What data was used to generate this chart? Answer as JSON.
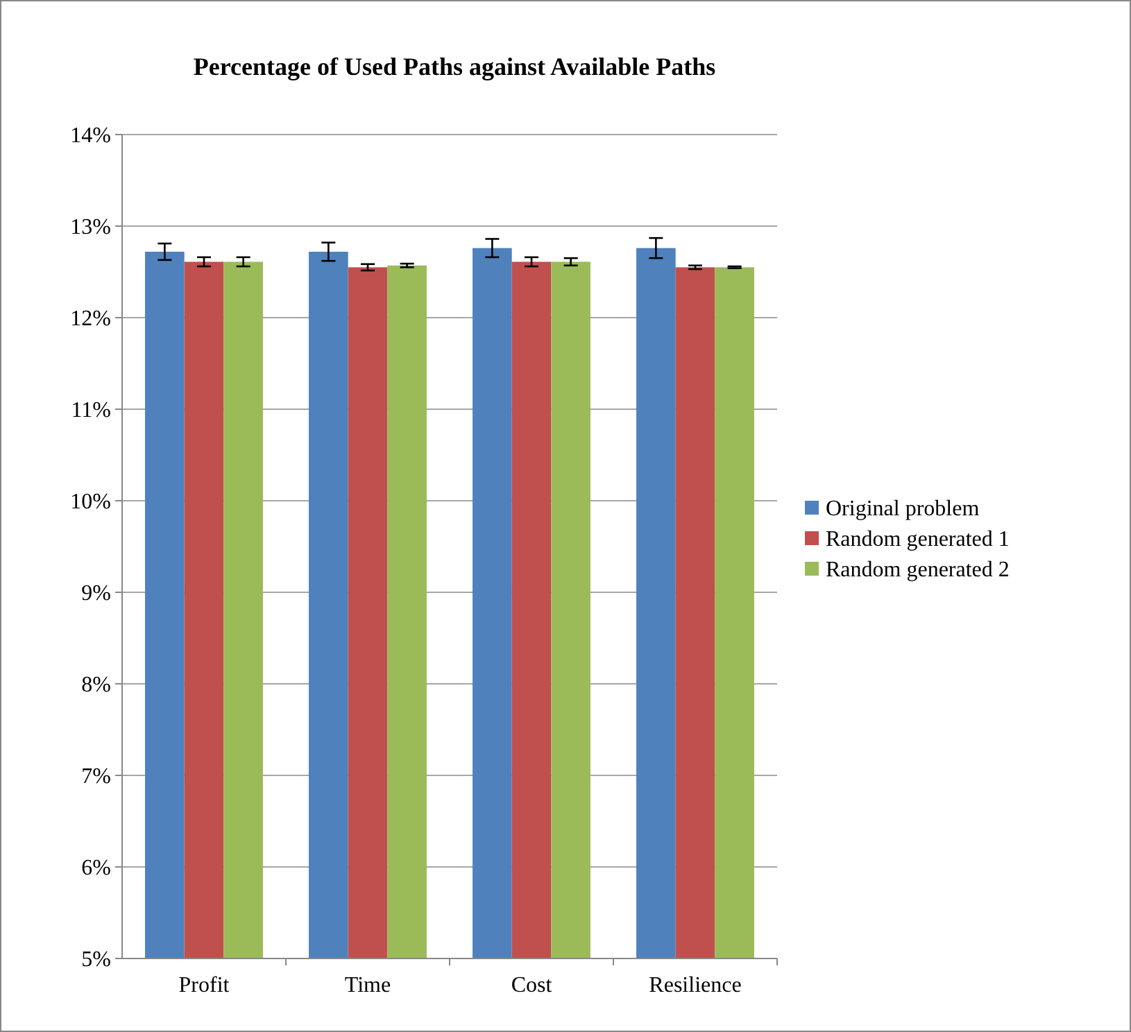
{
  "chart_data": {
    "type": "bar",
    "title": "Percentage of Used Paths against Available Paths",
    "categories": [
      "Profit",
      "Time",
      "Cost",
      "Resilience"
    ],
    "series": [
      {
        "name": "Original problem",
        "color": "#4f81bd",
        "values": [
          12.72,
          12.72,
          12.76,
          12.76
        ],
        "errors": [
          0.09,
          0.1,
          0.1,
          0.11
        ]
      },
      {
        "name": "Random generated 1",
        "color": "#c0504d",
        "values": [
          12.61,
          12.55,
          12.61,
          12.55
        ],
        "errors": [
          0.05,
          0.035,
          0.05,
          0.02
        ]
      },
      {
        "name": "Random generated 2",
        "color": "#9bbb59",
        "values": [
          12.61,
          12.57,
          12.61,
          12.55
        ],
        "errors": [
          0.05,
          0.02,
          0.04,
          0.01
        ]
      }
    ],
    "ylim": [
      5,
      14
    ],
    "yticks": [
      {
        "value": 5,
        "label": "5%"
      },
      {
        "value": 6,
        "label": "6%"
      },
      {
        "value": 7,
        "label": "7%"
      },
      {
        "value": 8,
        "label": "8%"
      },
      {
        "value": 9,
        "label": "9%"
      },
      {
        "value": 10,
        "label": "10%"
      },
      {
        "value": 11,
        "label": "11%"
      },
      {
        "value": 12,
        "label": "12%"
      },
      {
        "value": 13,
        "label": "13%"
      },
      {
        "value": 14,
        "label": "14%"
      }
    ],
    "grid": "y",
    "legend": "right"
  }
}
